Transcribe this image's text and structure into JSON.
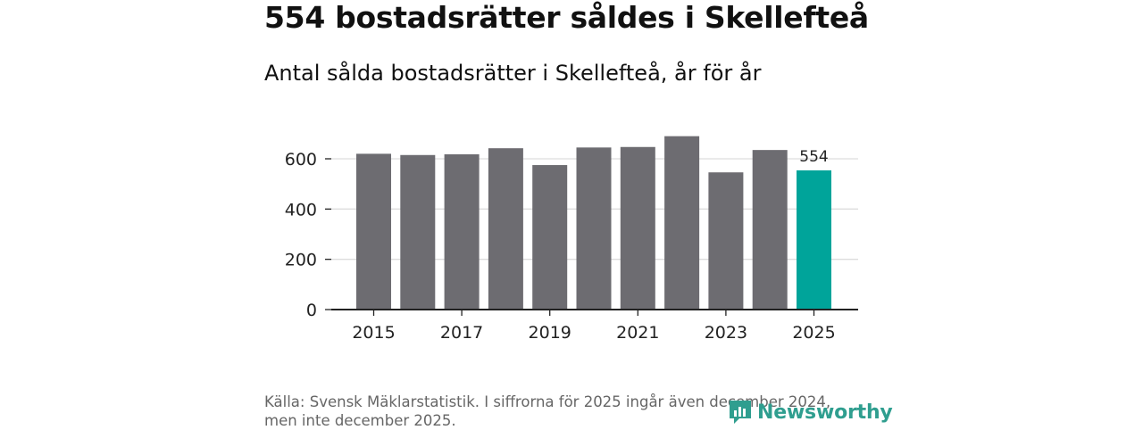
{
  "title": "554 bostadsrätter såldes i Skellefteå",
  "subtitle": "Antal sålda bostadsrätter i Skellefteå, år för år",
  "source": "Källa: Svensk Mäklarstatistik. I siffrorna för 2025 ingår även december 2024, men inte december 2025.",
  "brand": {
    "name": "Newsworthy",
    "icon": "bar-chart-logo-icon"
  },
  "colors": {
    "bar": "#6d6c71",
    "highlight": "#00a49a",
    "grid": "#dddddd",
    "axis": "#222222",
    "brand": "#2f9e8f"
  },
  "chart_data": {
    "type": "bar",
    "title": "Antal sålda bostadsrätter i Skellefteå, år för år",
    "categories": [
      "2015",
      "2016",
      "2017",
      "2018",
      "2019",
      "2020",
      "2021",
      "2022",
      "2023",
      "2024",
      "2025"
    ],
    "values": [
      620,
      615,
      618,
      642,
      575,
      645,
      647,
      690,
      546,
      635,
      554
    ],
    "highlight_index": 10,
    "highlight_label": "554",
    "x_tick_labels": [
      "2015",
      "2017",
      "2019",
      "2021",
      "2023",
      "2025"
    ],
    "y_ticks": [
      "0",
      "200",
      "400",
      "600"
    ],
    "ylim": [
      0,
      700
    ],
    "xlabel": "",
    "ylabel": "",
    "grid": true
  }
}
